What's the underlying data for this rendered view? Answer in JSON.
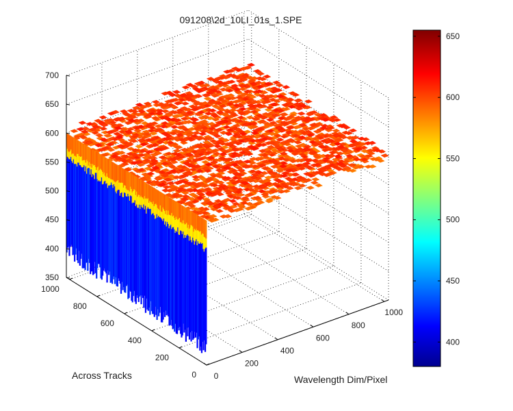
{
  "chart_data": {
    "type": "surface",
    "title": "091208\\2d_10LI_01s_1.SPE",
    "xlabel": "Wavelength Dim/Pixel",
    "ylabel": "Across Tracks",
    "zlabel": "",
    "x_ticks": [
      "0",
      "200",
      "400",
      "600",
      "800",
      "1000"
    ],
    "y_ticks": [
      "0",
      "200",
      "400",
      "600",
      "800",
      "1000"
    ],
    "z_ticks": [
      "350",
      "400",
      "450",
      "500",
      "550",
      "600",
      "650",
      "700"
    ],
    "xlim": [
      0,
      1024
    ],
    "ylim": [
      0,
      1024
    ],
    "zlim": [
      350,
      700
    ],
    "grid": true,
    "colorbar": {
      "range": [
        380,
        655
      ],
      "ticks": [
        "400",
        "450",
        "500",
        "550",
        "600",
        "650"
      ],
      "colormap": "jet"
    },
    "surface_summary": {
      "plateau_level": 600,
      "plateau_noise": 12,
      "edge_column_x": 0,
      "edge_level_range": [
        400,
        560
      ],
      "transition_level": 560
    },
    "colors": {
      "low": "#0000c8",
      "mid_low": "#0090ff",
      "mid": "#00e0c0",
      "mid_high": "#ffff00",
      "high": "#ff8000",
      "top": "#800000"
    }
  }
}
